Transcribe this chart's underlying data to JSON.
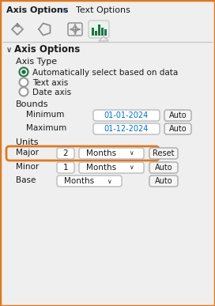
{
  "bg_color": "#efefef",
  "border_color": "#e07820",
  "title_tab1": "Axis Options",
  "title_tab2": "Text Options",
  "section_title": "Axis Options",
  "axis_type_label": "Axis Type",
  "radio_options": [
    "Automatically select based on data",
    "Text axis",
    "Date axis"
  ],
  "radio_color": "#217346",
  "bounds_label": "Bounds",
  "bounds_rows": [
    {
      "label": "Minimum",
      "value": "01-01-2024"
    },
    {
      "label": "Maximum",
      "value": "01-12-2024"
    }
  ],
  "bounds_value_color": "#0070c0",
  "units_label": "Units",
  "units_rows": [
    {
      "label": "Major",
      "num": "2",
      "unit": "Months",
      "btn": "Reset",
      "highlight": true
    },
    {
      "label": "Minor",
      "num": "1",
      "unit": "Months",
      "btn": "Auto",
      "highlight": false
    },
    {
      "label": "Base",
      "num": "",
      "unit": "Months",
      "btn": "Auto",
      "highlight": false
    }
  ],
  "highlight_color": "#e07820",
  "input_bg": "#ffffff",
  "btn_bg": "#f5f5f5",
  "btn_border": "#aaaaaa",
  "text_color": "#1a1a1a",
  "icon_color": "#217346",
  "arrow_color": "#4472c4",
  "figsize": [
    2.72,
    3.87
  ],
  "dpi": 100
}
